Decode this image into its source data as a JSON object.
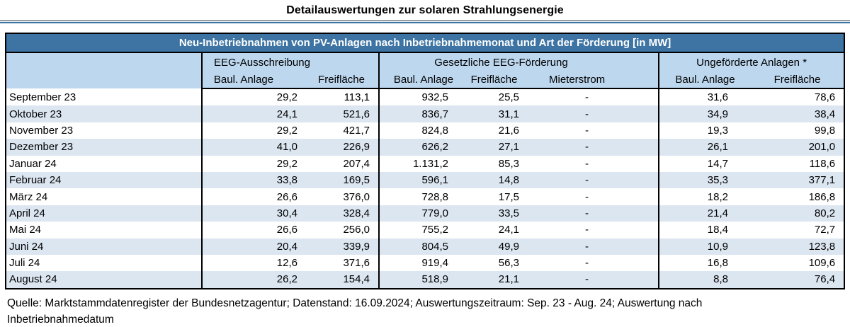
{
  "page": {
    "title": "Detailauswertungen zur solaren Strahlungsenergie"
  },
  "table": {
    "header_bar": "Neu-Inbetriebnahmen von PV-Anlagen nach Inbetriebnahmemonat und Art der Förderung [in MW]",
    "month_column_header": "",
    "column_groups": [
      {
        "label": "EEG-Ausschreibung",
        "columns": [
          "Baul. Anlage",
          "Freifläche"
        ]
      },
      {
        "label": "Gesetzliche EEG-Förderung",
        "columns": [
          "Baul. Anlage",
          "Freifläche",
          "Mieterstrom"
        ]
      },
      {
        "label": "Ungeförderte Anlagen *",
        "columns": [
          "Baul. Anlage",
          "Freifläche"
        ]
      }
    ],
    "rows": [
      {
        "month": "September 23",
        "values": [
          "29,2",
          "113,1",
          "932,5",
          "25,5",
          "-",
          "31,6",
          "78,6"
        ]
      },
      {
        "month": "Oktober 23",
        "values": [
          "24,1",
          "521,6",
          "836,7",
          "31,1",
          "-",
          "34,9",
          "38,4"
        ]
      },
      {
        "month": "November 23",
        "values": [
          "29,2",
          "421,7",
          "824,8",
          "21,6",
          "-",
          "19,3",
          "99,8"
        ]
      },
      {
        "month": "Dezember 23",
        "values": [
          "41,0",
          "226,9",
          "626,2",
          "27,1",
          "-",
          "26,1",
          "201,0"
        ]
      },
      {
        "month": "Januar 24",
        "values": [
          "29,2",
          "207,4",
          "1.131,2",
          "85,3",
          "-",
          "14,7",
          "118,6"
        ]
      },
      {
        "month": "Februar 24",
        "values": [
          "33,8",
          "169,5",
          "596,1",
          "14,8",
          "-",
          "35,3",
          "377,1"
        ]
      },
      {
        "month": "März 24",
        "values": [
          "26,6",
          "376,0",
          "728,8",
          "17,5",
          "-",
          "18,2",
          "186,8"
        ]
      },
      {
        "month": "April 24",
        "values": [
          "30,4",
          "328,4",
          "779,0",
          "33,5",
          "-",
          "21,4",
          "80,2"
        ]
      },
      {
        "month": "Mai 24",
        "values": [
          "26,6",
          "256,0",
          "755,2",
          "24,1",
          "-",
          "18,4",
          "72,7"
        ]
      },
      {
        "month": "Juni 24",
        "values": [
          "20,4",
          "339,9",
          "804,5",
          "49,9",
          "-",
          "10,9",
          "123,8"
        ]
      },
      {
        "month": "Juli 24",
        "values": [
          "12,6",
          "371,6",
          "919,4",
          "56,3",
          "-",
          "16,8",
          "109,6"
        ]
      },
      {
        "month": "August 24",
        "values": [
          "26,2",
          "154,4",
          "518,9",
          "21,1",
          "-",
          "8,8",
          "76,4"
        ]
      }
    ]
  },
  "footer": {
    "source": "Quelle: Marktstammdatenregister der Bundesnetzagentur; Datenstand: 16.09.2024; Auswertungszeitraum: Sep. 23 - Aug. 24; Auswertung nach Inbetriebnahmedatum"
  },
  "colors": {
    "bar_background": "#3d74a3",
    "header_background": "#bdd7ee",
    "stripe_background": "#dce6f1",
    "border": "#000000",
    "title_rule_blue": "#3e76a8",
    "title_rule_dark": "#1c2f40"
  }
}
